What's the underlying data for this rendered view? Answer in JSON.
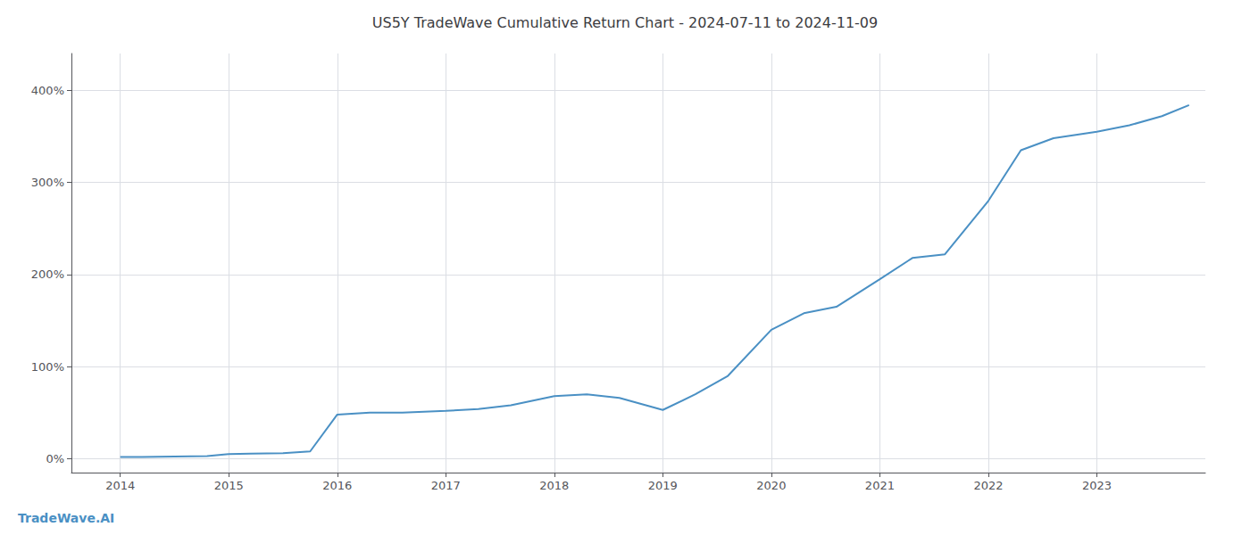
{
  "chart_data": {
    "type": "line",
    "title": "US5Y TradeWave Cumulative Return Chart - 2024-07-11 to 2024-11-09",
    "annotations": [
      "TradeWave.AI"
    ],
    "color": "#4a90c4",
    "x": [
      2014.0,
      2014.2,
      2014.5,
      2014.8,
      2015.0,
      2015.2,
      2015.5,
      2015.75,
      2016.0,
      2016.3,
      2016.6,
      2017.0,
      2017.3,
      2017.6,
      2018.0,
      2018.3,
      2018.6,
      2019.0,
      2019.3,
      2019.6,
      2020.0,
      2020.3,
      2020.6,
      2021.0,
      2021.3,
      2021.6,
      2022.0,
      2022.3,
      2022.6,
      2023.0,
      2023.3,
      2023.6,
      2023.85
    ],
    "values": [
      2.0,
      2.0,
      2.5,
      3.0,
      5.0,
      5.5,
      6.0,
      8.0,
      48.0,
      50.0,
      50.0,
      52.0,
      54.0,
      58.0,
      68.0,
      70.0,
      66.0,
      53.0,
      70.0,
      90.0,
      140.0,
      158.0,
      165.0,
      195.0,
      218.0,
      222.0,
      280.0,
      335.0,
      348.0,
      355.0,
      362.0,
      372.0,
      384.0
    ],
    "xlim": [
      2013.55,
      2024.0
    ],
    "xticks": [
      2014,
      2015,
      2016,
      2017,
      2018,
      2019,
      2020,
      2021,
      2022,
      2023
    ],
    "ylim": [
      -15,
      440
    ],
    "yticks": [
      {
        "value": 0,
        "label": "0%"
      },
      {
        "value": 100,
        "label": "100%"
      },
      {
        "value": 200,
        "label": "200%"
      },
      {
        "value": 300,
        "label": "300%"
      },
      {
        "value": 400,
        "label": "400%"
      }
    ],
    "grid": true
  }
}
